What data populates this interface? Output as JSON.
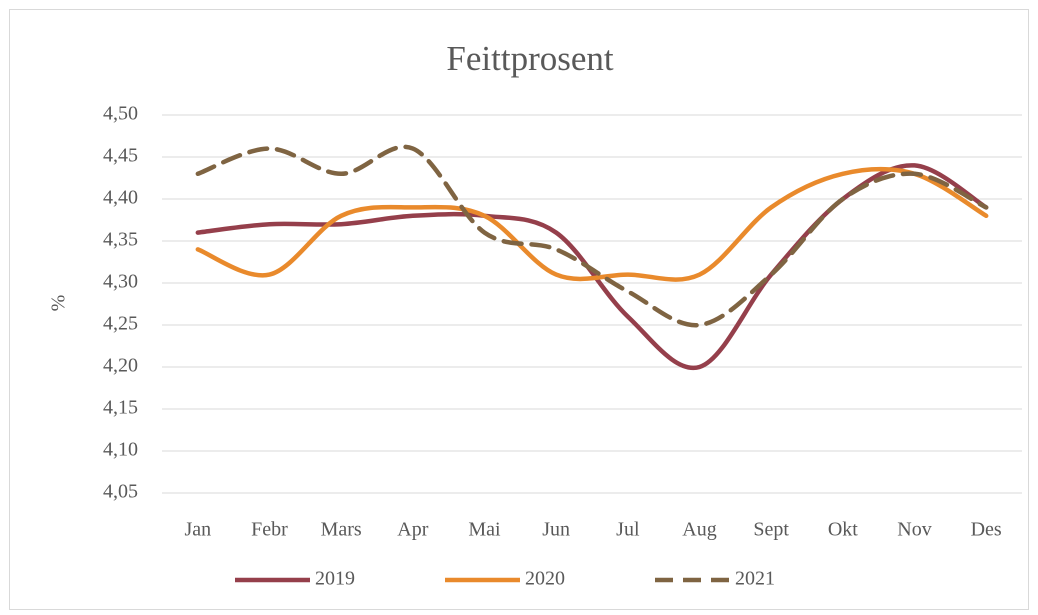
{
  "chart_data": {
    "type": "line",
    "title": "Feittprosent",
    "y_label": "%",
    "categories": [
      "Jan",
      "Febr",
      "Mars",
      "Apr",
      "Mai",
      "Jun",
      "Jul",
      "Aug",
      "Sept",
      "Okt",
      "Nov",
      "Des"
    ],
    "series": [
      {
        "name": "2019",
        "color": "#953f4b",
        "dashed": false,
        "values": [
          4.36,
          4.37,
          4.37,
          4.38,
          4.38,
          4.36,
          4.26,
          4.2,
          4.31,
          4.4,
          4.44,
          4.39
        ]
      },
      {
        "name": "2020",
        "color": "#e98a2c",
        "dashed": false,
        "values": [
          4.34,
          4.31,
          4.38,
          4.39,
          4.38,
          4.31,
          4.31,
          4.31,
          4.39,
          4.43,
          4.43,
          4.38
        ]
      },
      {
        "name": "2021",
        "color": "#7f6442",
        "dashed": true,
        "values": [
          4.43,
          4.46,
          4.43,
          4.46,
          4.36,
          4.34,
          4.29,
          4.25,
          4.31,
          4.4,
          4.43,
          4.39
        ]
      }
    ],
    "ylim": [
      4.05,
      4.5
    ],
    "yticks": [
      {
        "value": 4.05,
        "label": "4,05"
      },
      {
        "value": 4.1,
        "label": "4,10"
      },
      {
        "value": 4.15,
        "label": "4,15"
      },
      {
        "value": 4.2,
        "label": "4,20"
      },
      {
        "value": 4.25,
        "label": "4,25"
      },
      {
        "value": 4.3,
        "label": "4,30"
      },
      {
        "value": 4.35,
        "label": "4,35"
      },
      {
        "value": 4.4,
        "label": "4,40"
      },
      {
        "value": 4.45,
        "label": "4,45"
      },
      {
        "value": 4.5,
        "label": "4,50"
      }
    ],
    "grid": true,
    "legend": "bottom"
  }
}
